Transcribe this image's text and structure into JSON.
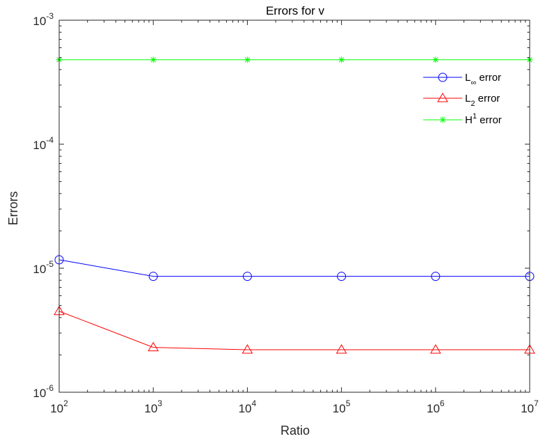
{
  "chart_data": {
    "type": "line",
    "title": "Errors  for v",
    "xlabel": "Ratio",
    "ylabel": "Errors",
    "x_scale": "log",
    "y_scale": "log",
    "xlim": [
      100,
      10000000
    ],
    "ylim": [
      1e-06,
      0.001
    ],
    "x_ticks": [
      {
        "value": 100,
        "base": "10",
        "exp": "2"
      },
      {
        "value": 1000,
        "base": "10",
        "exp": "3"
      },
      {
        "value": 10000,
        "base": "10",
        "exp": "4"
      },
      {
        "value": 100000,
        "base": "10",
        "exp": "5"
      },
      {
        "value": 1000000,
        "base": "10",
        "exp": "6"
      },
      {
        "value": 10000000,
        "base": "10",
        "exp": "7"
      }
    ],
    "y_ticks": [
      {
        "value": 1e-06,
        "base": "10",
        "exp": "-6"
      },
      {
        "value": 1e-05,
        "base": "10",
        "exp": "-5"
      },
      {
        "value": 0.0001,
        "base": "10",
        "exp": "-4"
      },
      {
        "value": 0.001,
        "base": "10",
        "exp": "-3"
      }
    ],
    "grid": false,
    "legend_position": "top-right",
    "x": [
      100,
      1000,
      10000,
      100000,
      1000000,
      10000000
    ],
    "series": [
      {
        "name": "L∞ error",
        "name_main": "L",
        "name_sub": "∞",
        "name_sup": "",
        "name_rest": " error",
        "color": "#0000ff",
        "marker": "circle",
        "values": [
          1.17e-05,
          8.6e-06,
          8.6e-06,
          8.6e-06,
          8.6e-06,
          8.6e-06
        ]
      },
      {
        "name": "L2 error",
        "name_main": "L",
        "name_sub": "2",
        "name_sup": "",
        "name_rest": " error",
        "color": "#ff0000",
        "marker": "triangle",
        "values": [
          4.5e-06,
          2.3e-06,
          2.2e-06,
          2.2e-06,
          2.2e-06,
          2.2e-06
        ]
      },
      {
        "name": "H1 error",
        "name_main": "H",
        "name_sub": "",
        "name_sup": "1",
        "name_rest": " error",
        "color": "#00ff00",
        "marker": "asterisk",
        "values": [
          0.00048,
          0.00048,
          0.00048,
          0.00048,
          0.00048,
          0.00048
        ]
      }
    ]
  }
}
